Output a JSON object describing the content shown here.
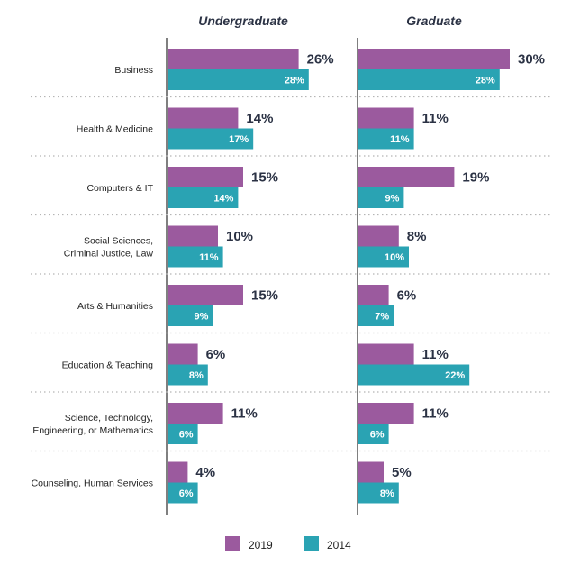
{
  "chart_data": {
    "type": "bar",
    "orientation": "horizontal",
    "value_suffix": "%",
    "categories": [
      [
        "Business"
      ],
      [
        "Health & Medicine"
      ],
      [
        "Computers & IT"
      ],
      [
        "Social Sciences,",
        "Criminal Justice, Law"
      ],
      [
        "Arts & Humanities"
      ],
      [
        "Education & Teaching"
      ],
      [
        "Science, Technology,",
        "Engineering, or Mathematics"
      ],
      [
        "Counseling, Human Services"
      ]
    ],
    "panels": [
      {
        "title": "Undergraduate",
        "series": [
          {
            "name": "2019",
            "color": "#9b5a9e",
            "values": [
              26,
              14,
              15,
              10,
              15,
              6,
              11,
              4
            ]
          },
          {
            "name": "2014",
            "color": "#2aa3b3",
            "values": [
              28,
              17,
              14,
              11,
              9,
              8,
              6,
              6
            ]
          }
        ]
      },
      {
        "title": "Graduate",
        "series": [
          {
            "name": "2019",
            "color": "#9b5a9e",
            "values": [
              30,
              11,
              19,
              8,
              6,
              11,
              11,
              5
            ]
          },
          {
            "name": "2014",
            "color": "#2aa3b3",
            "values": [
              28,
              11,
              9,
              10,
              7,
              22,
              6,
              8
            ]
          }
        ]
      }
    ],
    "legend": {
      "placement": "bottom-center",
      "items": [
        {
          "label": "2019",
          "color": "#9b5a9e"
        },
        {
          "label": "2014",
          "color": "#2aa3b3"
        }
      ]
    },
    "grid": false,
    "separators": "dotted"
  }
}
